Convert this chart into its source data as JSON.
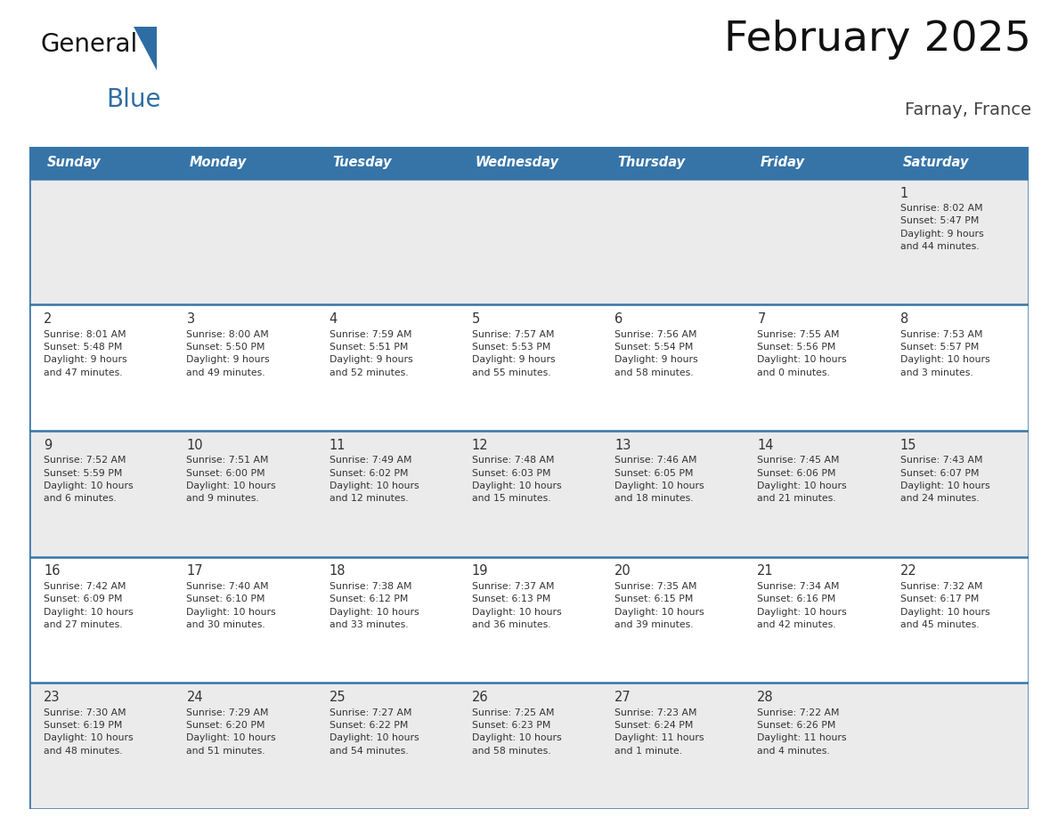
{
  "title": "February 2025",
  "subtitle": "Farnay, France",
  "header_bg_color": "#3674a8",
  "header_text_color": "#FFFFFF",
  "cell_bg_color_light": "#EBEBEB",
  "cell_bg_color_white": "#FFFFFF",
  "border_color": "#3674a8",
  "text_color": "#333333",
  "days_of_week": [
    "Sunday",
    "Monday",
    "Tuesday",
    "Wednesday",
    "Thursday",
    "Friday",
    "Saturday"
  ],
  "weeks": [
    [
      {
        "day": null,
        "info": null
      },
      {
        "day": null,
        "info": null
      },
      {
        "day": null,
        "info": null
      },
      {
        "day": null,
        "info": null
      },
      {
        "day": null,
        "info": null
      },
      {
        "day": null,
        "info": null
      },
      {
        "day": 1,
        "info": "Sunrise: 8:02 AM\nSunset: 5:47 PM\nDaylight: 9 hours\nand 44 minutes."
      }
    ],
    [
      {
        "day": 2,
        "info": "Sunrise: 8:01 AM\nSunset: 5:48 PM\nDaylight: 9 hours\nand 47 minutes."
      },
      {
        "day": 3,
        "info": "Sunrise: 8:00 AM\nSunset: 5:50 PM\nDaylight: 9 hours\nand 49 minutes."
      },
      {
        "day": 4,
        "info": "Sunrise: 7:59 AM\nSunset: 5:51 PM\nDaylight: 9 hours\nand 52 minutes."
      },
      {
        "day": 5,
        "info": "Sunrise: 7:57 AM\nSunset: 5:53 PM\nDaylight: 9 hours\nand 55 minutes."
      },
      {
        "day": 6,
        "info": "Sunrise: 7:56 AM\nSunset: 5:54 PM\nDaylight: 9 hours\nand 58 minutes."
      },
      {
        "day": 7,
        "info": "Sunrise: 7:55 AM\nSunset: 5:56 PM\nDaylight: 10 hours\nand 0 minutes."
      },
      {
        "day": 8,
        "info": "Sunrise: 7:53 AM\nSunset: 5:57 PM\nDaylight: 10 hours\nand 3 minutes."
      }
    ],
    [
      {
        "day": 9,
        "info": "Sunrise: 7:52 AM\nSunset: 5:59 PM\nDaylight: 10 hours\nand 6 minutes."
      },
      {
        "day": 10,
        "info": "Sunrise: 7:51 AM\nSunset: 6:00 PM\nDaylight: 10 hours\nand 9 minutes."
      },
      {
        "day": 11,
        "info": "Sunrise: 7:49 AM\nSunset: 6:02 PM\nDaylight: 10 hours\nand 12 minutes."
      },
      {
        "day": 12,
        "info": "Sunrise: 7:48 AM\nSunset: 6:03 PM\nDaylight: 10 hours\nand 15 minutes."
      },
      {
        "day": 13,
        "info": "Sunrise: 7:46 AM\nSunset: 6:05 PM\nDaylight: 10 hours\nand 18 minutes."
      },
      {
        "day": 14,
        "info": "Sunrise: 7:45 AM\nSunset: 6:06 PM\nDaylight: 10 hours\nand 21 minutes."
      },
      {
        "day": 15,
        "info": "Sunrise: 7:43 AM\nSunset: 6:07 PM\nDaylight: 10 hours\nand 24 minutes."
      }
    ],
    [
      {
        "day": 16,
        "info": "Sunrise: 7:42 AM\nSunset: 6:09 PM\nDaylight: 10 hours\nand 27 minutes."
      },
      {
        "day": 17,
        "info": "Sunrise: 7:40 AM\nSunset: 6:10 PM\nDaylight: 10 hours\nand 30 minutes."
      },
      {
        "day": 18,
        "info": "Sunrise: 7:38 AM\nSunset: 6:12 PM\nDaylight: 10 hours\nand 33 minutes."
      },
      {
        "day": 19,
        "info": "Sunrise: 7:37 AM\nSunset: 6:13 PM\nDaylight: 10 hours\nand 36 minutes."
      },
      {
        "day": 20,
        "info": "Sunrise: 7:35 AM\nSunset: 6:15 PM\nDaylight: 10 hours\nand 39 minutes."
      },
      {
        "day": 21,
        "info": "Sunrise: 7:34 AM\nSunset: 6:16 PM\nDaylight: 10 hours\nand 42 minutes."
      },
      {
        "day": 22,
        "info": "Sunrise: 7:32 AM\nSunset: 6:17 PM\nDaylight: 10 hours\nand 45 minutes."
      }
    ],
    [
      {
        "day": 23,
        "info": "Sunrise: 7:30 AM\nSunset: 6:19 PM\nDaylight: 10 hours\nand 48 minutes."
      },
      {
        "day": 24,
        "info": "Sunrise: 7:29 AM\nSunset: 6:20 PM\nDaylight: 10 hours\nand 51 minutes."
      },
      {
        "day": 25,
        "info": "Sunrise: 7:27 AM\nSunset: 6:22 PM\nDaylight: 10 hours\nand 54 minutes."
      },
      {
        "day": 26,
        "info": "Sunrise: 7:25 AM\nSunset: 6:23 PM\nDaylight: 10 hours\nand 58 minutes."
      },
      {
        "day": 27,
        "info": "Sunrise: 7:23 AM\nSunset: 6:24 PM\nDaylight: 11 hours\nand 1 minute."
      },
      {
        "day": 28,
        "info": "Sunrise: 7:22 AM\nSunset: 6:26 PM\nDaylight: 11 hours\nand 4 minutes."
      },
      {
        "day": null,
        "info": null
      }
    ]
  ],
  "fig_width": 11.88,
  "fig_height": 9.18,
  "dpi": 100
}
